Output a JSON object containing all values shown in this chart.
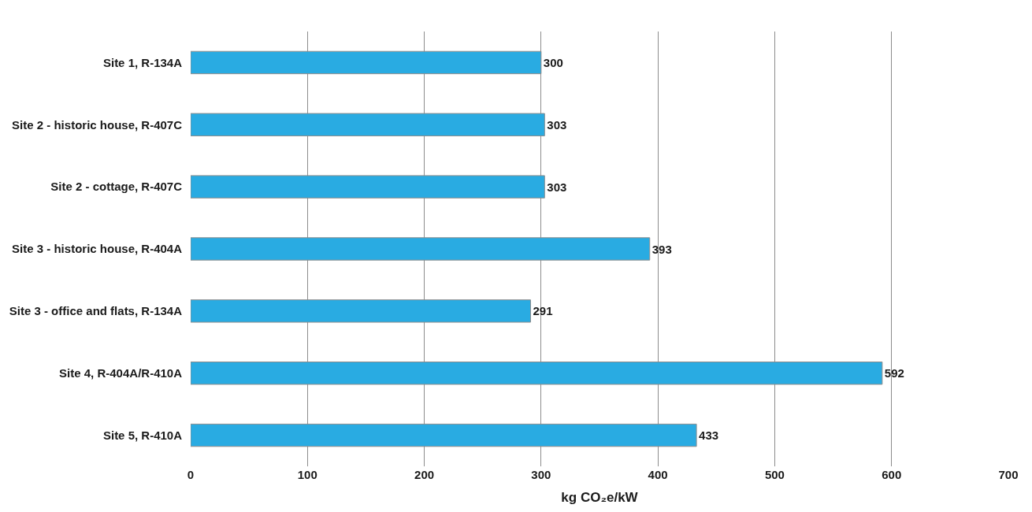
{
  "chart_data": {
    "type": "bar",
    "orientation": "horizontal",
    "categories": [
      "Site 1, R-134A",
      "Site 2 - historic house, R-407C",
      "Site 2 - cottage, R-407C",
      "Site 3 - historic house, R-404A",
      "Site 3 - office and flats, R-134A",
      "Site 4, R-404A/R-410A",
      "Site 5, R-410A"
    ],
    "values": [
      300,
      303,
      303,
      393,
      291,
      592,
      433
    ],
    "color": "#29abe2",
    "xlabel": "kg CO₂e/kW",
    "xlim": [
      0,
      700
    ],
    "xticks": [
      0,
      100,
      200,
      300,
      400,
      500,
      600,
      700
    ],
    "grid": "x",
    "data_labels": true,
    "legend": false
  }
}
